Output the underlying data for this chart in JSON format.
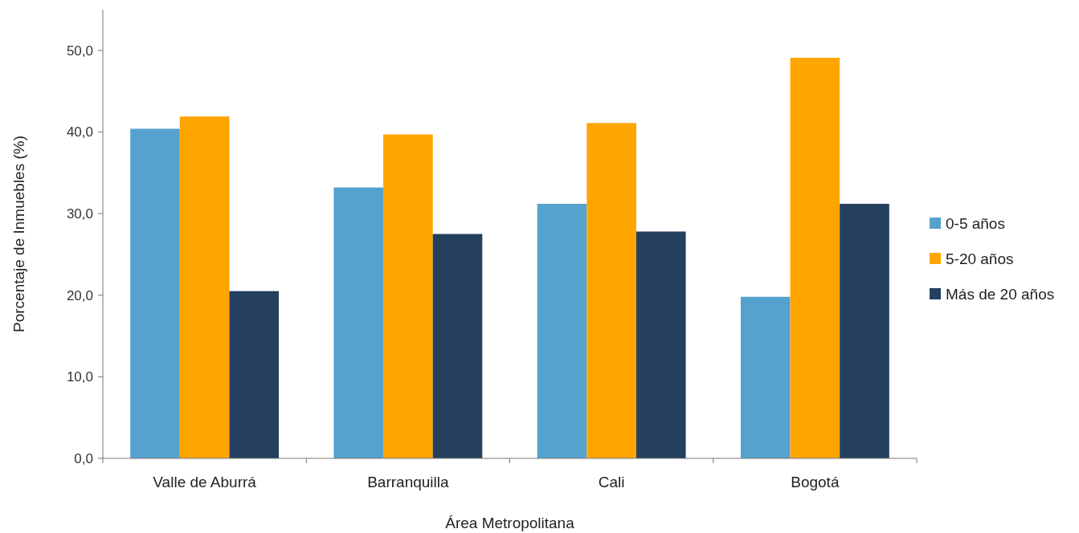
{
  "chart_data": {
    "type": "bar",
    "xlabel": "Área Metropolitana",
    "ylabel": "Porcentaje de Inmuebles (%)",
    "categories": [
      "Valle de Aburrá",
      "Barranquilla",
      "Cali",
      "Bogotá"
    ],
    "series": [
      {
        "name": "0-5 años",
        "color": "#55a2cf",
        "values": [
          40.4,
          33.2,
          31.2,
          19.8
        ]
      },
      {
        "name": "5-20 años",
        "color": "#ffa500",
        "values": [
          41.9,
          39.7,
          41.1,
          49.1
        ]
      },
      {
        "name": "Más de 20 años",
        "color": "#253f5f",
        "values": [
          20.5,
          27.5,
          27.8,
          31.2
        ]
      }
    ],
    "ylim": [
      0,
      55
    ],
    "yticks": [
      {
        "value": 0,
        "label": "0,0"
      },
      {
        "value": 10,
        "label": "10,0"
      },
      {
        "value": 20,
        "label": "20,0"
      },
      {
        "value": 30,
        "label": "30,0"
      },
      {
        "value": 40,
        "label": "40,0"
      },
      {
        "value": 50,
        "label": "50,0"
      }
    ],
    "grid": false,
    "legend": "right"
  }
}
